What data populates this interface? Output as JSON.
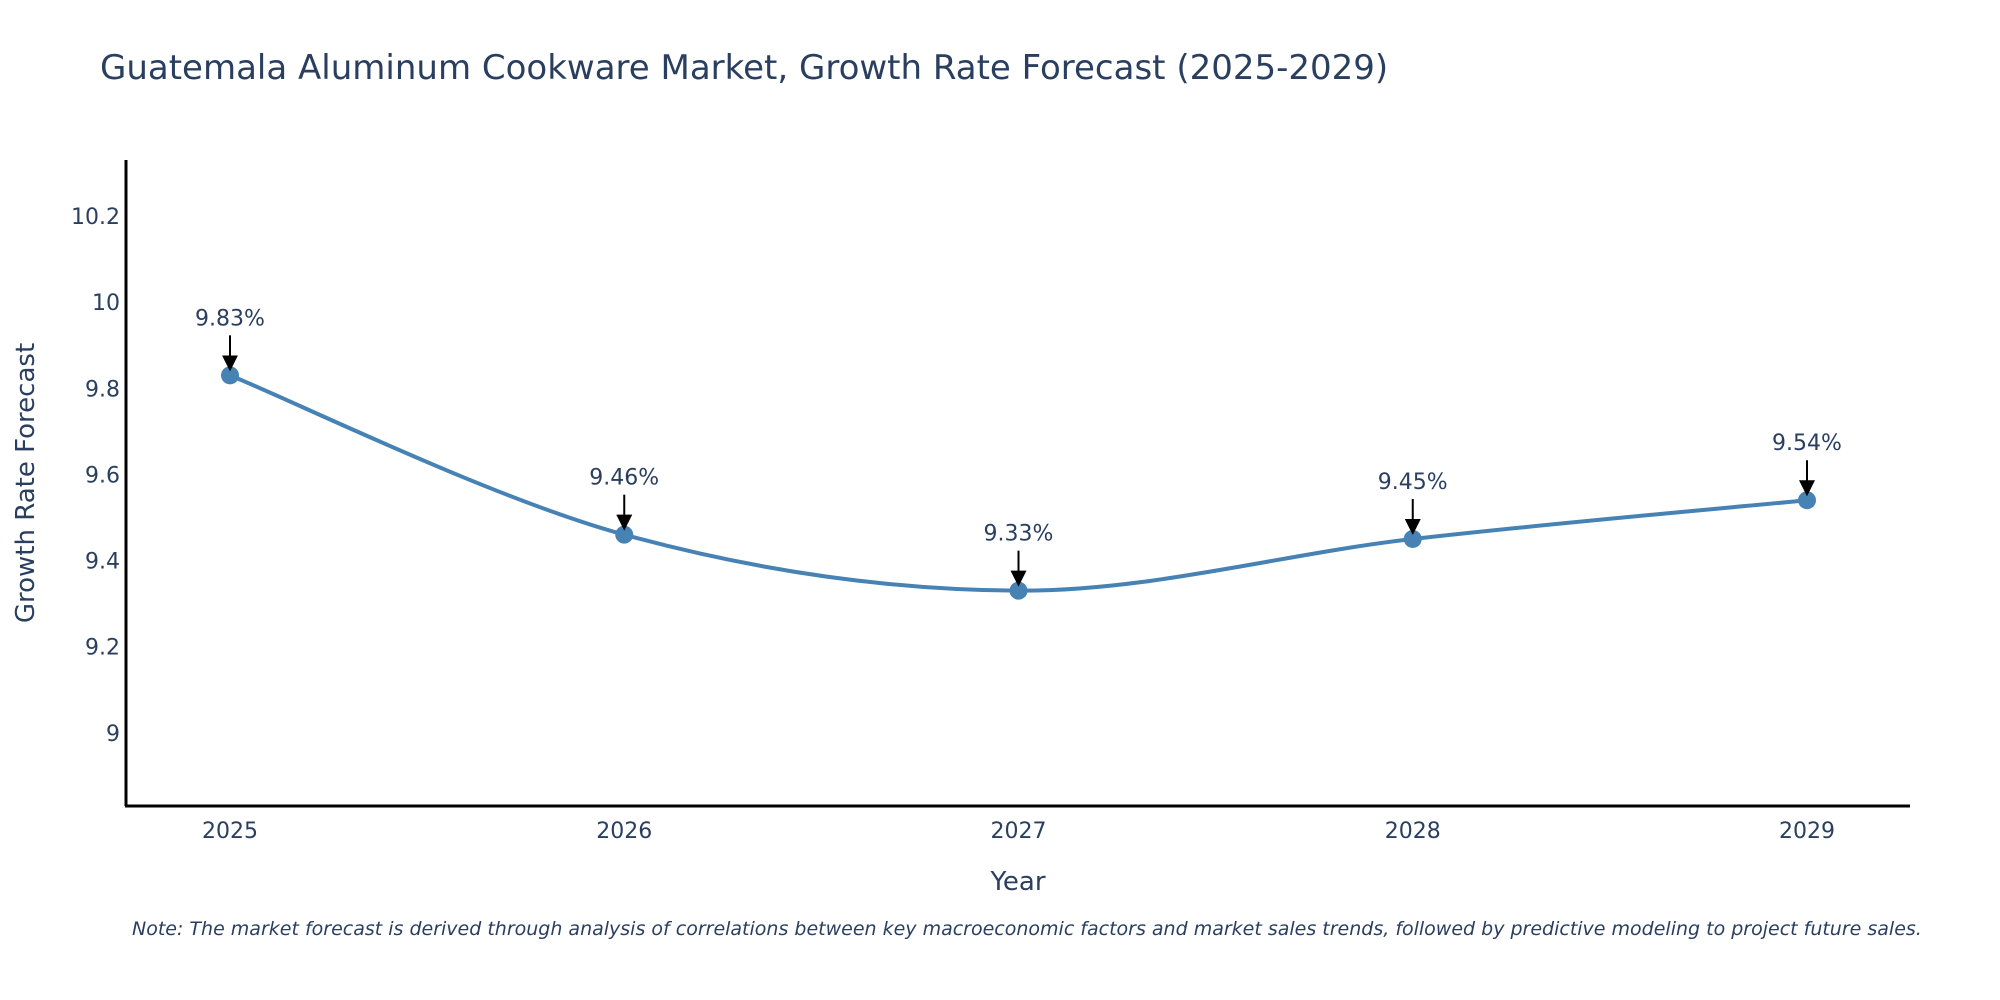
{
  "chart_data": {
    "type": "line",
    "title": "Guatemala Aluminum Cookware Market, Growth Rate Forecast (2025-2029)",
    "xlabel": "Year",
    "ylabel": "Growth Rate Forecast",
    "categories": [
      "2025",
      "2026",
      "2027",
      "2028",
      "2029"
    ],
    "values": [
      9.83,
      9.46,
      9.33,
      9.45,
      9.54
    ],
    "data_labels": [
      "9.83%",
      "9.46%",
      "9.33%",
      "9.45%",
      "9.54%"
    ],
    "y_ticks": [
      9,
      9.2,
      9.4,
      9.6,
      9.8,
      10,
      10.2
    ],
    "y_tick_labels": [
      "9",
      "9.2",
      "9.4",
      "9.6",
      "9.8",
      "10",
      "10.2"
    ],
    "ylim": [
      8.83,
      10.33
    ],
    "grid": false,
    "line_color": "#4682b4",
    "marker_color": "#4682b4",
    "line_shape": "spline",
    "note": "Note: The market forecast is derived through analysis of correlations between key macroeconomic factors and market sales trends, followed by predictive modeling to project future sales."
  }
}
